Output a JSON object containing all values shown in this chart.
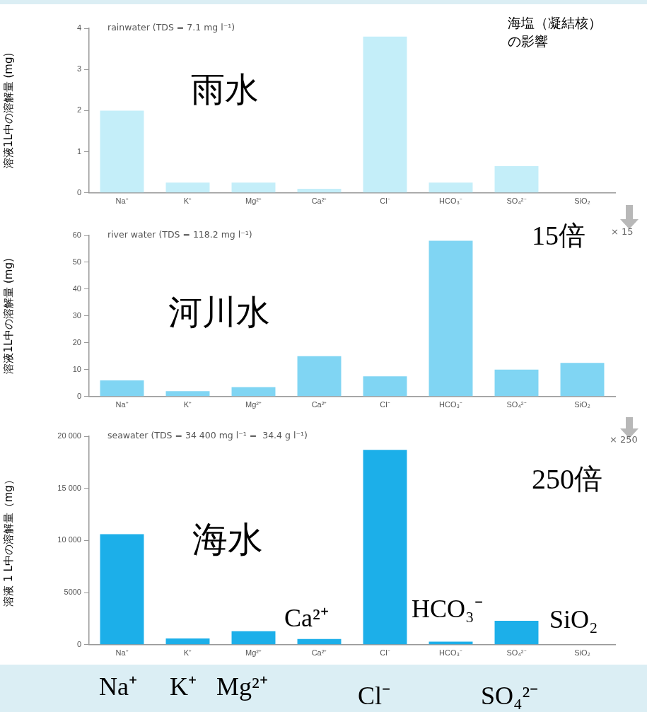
{
  "chart_data": [
    {
      "type": "bar",
      "title": "rainwater (TDS = 7.1 mg l⁻¹)",
      "ylabel": "溶液1L中の溶解量 (mg)",
      "categories": [
        "Na⁺",
        "K⁺",
        "Mg²⁺",
        "Ca²⁺",
        "Cl⁻",
        "HCO₃⁻",
        "SO₄²⁻",
        "SiO₂"
      ],
      "values": [
        2.0,
        0.25,
        0.25,
        0.1,
        3.8,
        0.25,
        0.65,
        0
      ],
      "color": "#c4eef9",
      "ylim": [
        0,
        4
      ],
      "yticks": [
        0,
        1,
        2,
        3,
        4
      ],
      "grid": false,
      "legend": false,
      "annotations": [
        "雨水",
        "海塩（凝結核）の影響"
      ]
    },
    {
      "type": "bar",
      "title": "river water (TDS = 118.2 mg l⁻¹)",
      "ylabel": "溶液1L中の溶解量 (mg)",
      "categories": [
        "Na⁺",
        "K⁺",
        "Mg²⁺",
        "Ca²⁺",
        "Cl⁻",
        "HCO₃⁻",
        "SO₄²⁻",
        "SiO₂"
      ],
      "values": [
        6,
        2,
        3.5,
        15,
        7.5,
        58,
        10,
        12.5
      ],
      "color": "#80d5f3",
      "ylim": [
        0,
        60
      ],
      "yticks": [
        0,
        10,
        20,
        30,
        40,
        50,
        60
      ],
      "grid": false,
      "legend": false,
      "annotations": [
        "河川水",
        "15倍",
        "× 15"
      ]
    },
    {
      "type": "bar",
      "title": "seawater (TDS = 34 400 mg l⁻¹ =  34.4 g l⁻¹)",
      "ylabel": "溶液 1 L中の溶解量（mg）",
      "categories": [
        "Na⁺",
        "K⁺",
        "Mg²⁺",
        "Ca²⁺",
        "Cl⁻",
        "HCO₃⁻",
        "SO₄²⁻",
        "SiO₂"
      ],
      "values": [
        10600,
        600,
        1300,
        550,
        18700,
        300,
        2300,
        0
      ],
      "color": "#1cafe9",
      "ylim": [
        0,
        20000
      ],
      "yticks": [
        0,
        5000,
        {
          "value": 10000,
          "label": "10 000"
        },
        {
          "value": 15000,
          "label": "15 000"
        },
        {
          "value": 20000,
          "label": "20 000"
        }
      ],
      "grid": false,
      "legend": false,
      "annotations": [
        "海水",
        "250倍",
        "× 250",
        "Ca²⁺",
        "HCO₃⁻",
        "SiO₂",
        "Na⁺",
        "K⁺",
        "Mg²⁺",
        "Cl⁻",
        "SO₄²⁻"
      ]
    }
  ]
}
